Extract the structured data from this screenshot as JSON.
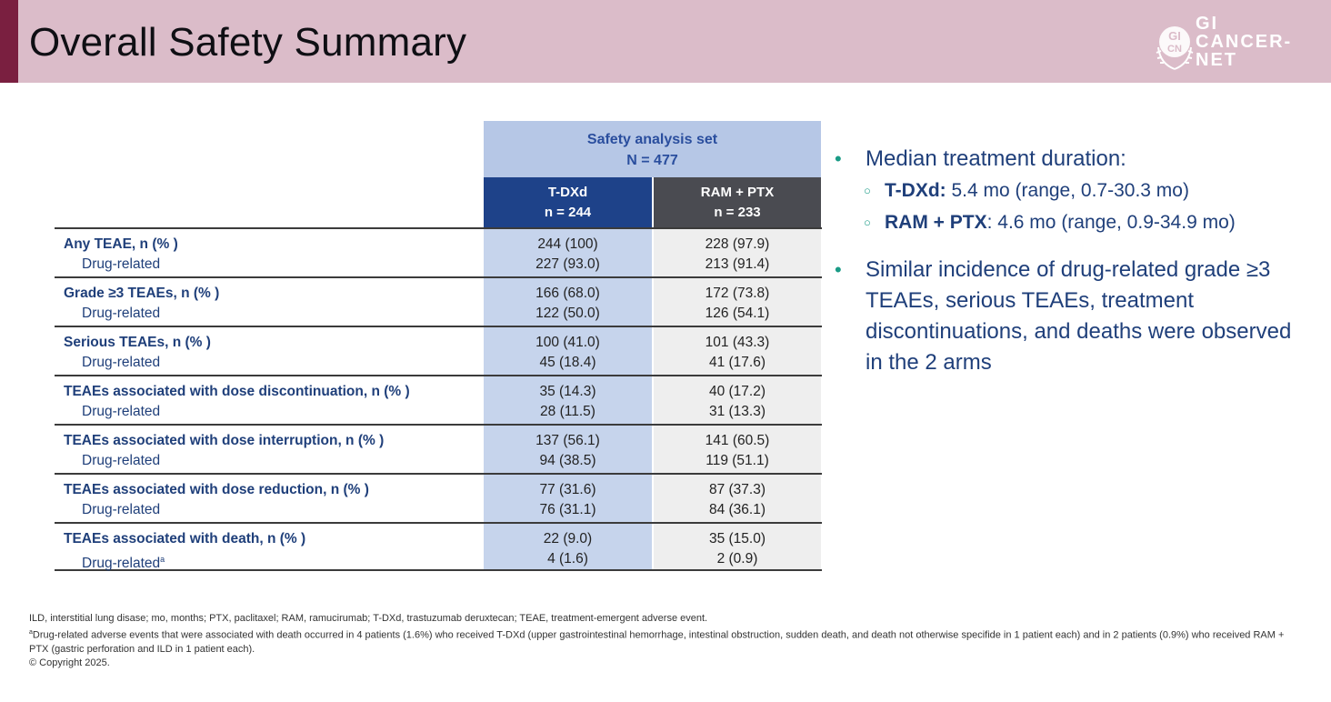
{
  "title": "Overall Safety Summary",
  "logo": {
    "text_line1": "GI",
    "text_line2": "CANCER-",
    "text_line3": "NET",
    "badge_top": "GI",
    "badge_bottom": "CN"
  },
  "table": {
    "group_header_line1": "Safety analysis set",
    "group_header_line2": "N = 477",
    "col_a_line1": "T-DXd",
    "col_a_line2": "n = 244",
    "col_b_line1": "RAM + PTX",
    "col_b_line2": "n = 233",
    "rows": [
      {
        "label": "Any TEAE, n (% )",
        "sub": "Drug-related",
        "sup": "",
        "a1": "244 (100)",
        "a2": "227 (93.0)",
        "b1": "228 (97.9)",
        "b2": "213 (91.4)"
      },
      {
        "label": "Grade ≥3 TEAEs, n (% )",
        "sub": "Drug-related",
        "sup": "",
        "a1": "166 (68.0)",
        "a2": "122 (50.0)",
        "b1": "172 (73.8)",
        "b2": "126 (54.1)"
      },
      {
        "label": "Serious TEAEs, n (% )",
        "sub": "Drug-related",
        "sup": "",
        "a1": "100 (41.0)",
        "a2": "45 (18.4)",
        "b1": "101 (43.3)",
        "b2": "41 (17.6)"
      },
      {
        "label": "TEAEs associated with dose discontinuation, n (% )",
        "sub": "Drug-related",
        "sup": "",
        "a1": "35 (14.3)",
        "a2": "28 (11.5)",
        "b1": "40 (17.2)",
        "b2": "31 (13.3)"
      },
      {
        "label": "TEAEs associated with dose interruption, n (% )",
        "sub": "Drug-related",
        "sup": "",
        "a1": "137 (56.1)",
        "a2": "94 (38.5)",
        "b1": "141 (60.5)",
        "b2": "119 (51.1)"
      },
      {
        "label": "TEAEs associated with dose reduction, n (% )",
        "sub": "Drug-related",
        "sup": "",
        "a1": "77 (31.6)",
        "a2": "76 (31.1)",
        "b1": "87 (37.3)",
        "b2": "84 (36.1)"
      },
      {
        "label": "TEAEs associated with death, n (% )",
        "sub": "Drug-related",
        "sup": "a",
        "a1": "22 (9.0)",
        "a2": "4 (1.6)",
        "b1": "35 (15.0)",
        "b2": "2 (0.9)"
      }
    ]
  },
  "bullets": {
    "b1": "Median treatment duration:",
    "s1_bold": "T-DXd:",
    "s1_rest": " 5.4 mo (range, 0.7-30.3 mo)",
    "s2_bold": "RAM + PTX",
    "s2_rest": ": 4.6 mo (range, 0.9-34.9 mo)",
    "b2": "Similar incidence of drug-related grade ≥3 TEAEs, serious TEAEs, treatment discontinuations, and deaths were observed in the 2 arms"
  },
  "footnotes": {
    "abbrev": "ILD, interstitial lung disase; mo, months; PTX, paclitaxel; RAM, ramucirumab; T-DXd, trastuzumab deruxtecan; TEAE, treatment-emergent adverse event.",
    "note_sup": "a",
    "note": "Drug-related adverse events that were associated with death occurred in 4 patients (1.6%) who received T-DXd (upper gastrointestinal hemorrhage, intestinal obstruction, sudden death, and death not otherwise specifide in 1 patient each) and in 2 patients (0.9%) who received RAM + PTX (gastric perforation and ILD in 1 patient each).",
    "copyright": "© Copyright 2025."
  }
}
